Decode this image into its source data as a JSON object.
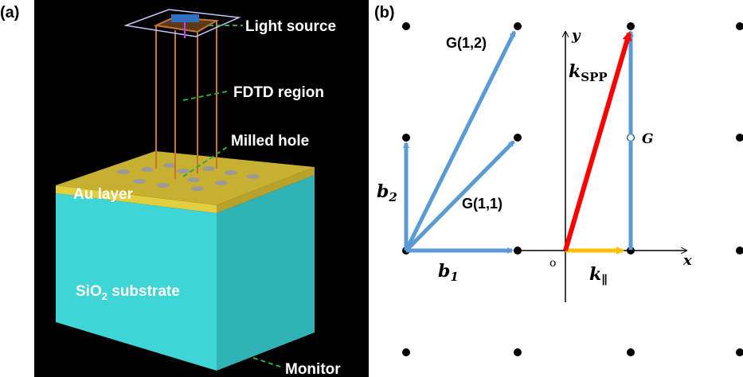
{
  "panel_a": {
    "label": "(a)",
    "annotations": {
      "light_source": "Light source",
      "fdtd_region": "FDTD region",
      "milled_hole": "Milled hole",
      "au_layer": "Au layer",
      "substrate": {
        "main": "SiO",
        "sub": "2",
        "rest": " substrate"
      },
      "monitor": "Monitor"
    }
  },
  "panel_b": {
    "label": "(b)",
    "vectors": {
      "g12": "G(1,2)",
      "g11": "G(1,1)",
      "b2": {
        "main": "b",
        "sub": "2"
      },
      "b1": {
        "main": "b",
        "sub": "1"
      }
    },
    "axes": {
      "x": "x",
      "y": "y",
      "origin": "o"
    },
    "k_spp": {
      "main": "k",
      "sub": "SPP"
    },
    "g": "G",
    "k_par": {
      "main": "k",
      "sub": "∥"
    }
  }
}
